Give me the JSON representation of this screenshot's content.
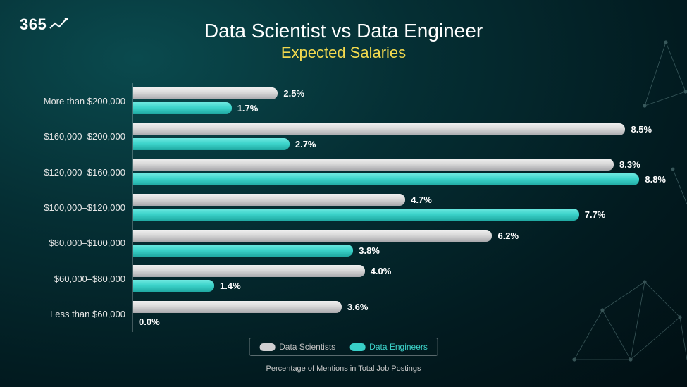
{
  "brand": {
    "text": "365"
  },
  "title": "Data Scientist vs Data Engineer",
  "subtitle": "Expected Salaries",
  "subtitle_color": "#f2d94e",
  "axis_label": "Percentage of Mentions in Total Job Postings",
  "chart": {
    "type": "grouped-horizontal-bar",
    "max_value": 9.2,
    "series": [
      {
        "name": "Data Scientists",
        "color_top": "#f0f0f0",
        "color_bottom": "#a8a8ac",
        "swatch": "#cfcfd1",
        "text_color": "#bfbfbf"
      },
      {
        "name": "Data Engineers",
        "color_top": "#6ee8e0",
        "color_bottom": "#1fa9a2",
        "swatch": "#38cfc7",
        "text_color": "#3dd4cb"
      }
    ],
    "categories": [
      {
        "label": "More than $200,000",
        "values": [
          2.5,
          1.7
        ],
        "display": [
          "2.5%",
          "1.7%"
        ]
      },
      {
        "label": "$160,000–$200,000",
        "values": [
          8.5,
          2.7
        ],
        "display": [
          "8.5%",
          "2.7%"
        ]
      },
      {
        "label": "$120,000–$160,000",
        "values": [
          8.3,
          8.8
        ],
        "display": [
          "8.3%",
          "8.8%"
        ]
      },
      {
        "label": "$100,000–$120,000",
        "values": [
          4.7,
          7.7
        ],
        "display": [
          "4.7%",
          "7.7%"
        ]
      },
      {
        "label": "$80,000–$100,000",
        "values": [
          6.2,
          3.8
        ],
        "display": [
          "6.2%",
          "3.8%"
        ]
      },
      {
        "label": "$60,000–$80,000",
        "values": [
          4.0,
          1.4
        ],
        "display": [
          "4.0%",
          "1.4%"
        ]
      },
      {
        "label": "Less than $60,000",
        "values": [
          3.6,
          0.0
        ],
        "display": [
          "3.6%",
          "0.0%"
        ]
      }
    ]
  },
  "legend": {
    "items": [
      {
        "label": "Data Scientists"
      },
      {
        "label": "Data Engineers"
      }
    ]
  }
}
